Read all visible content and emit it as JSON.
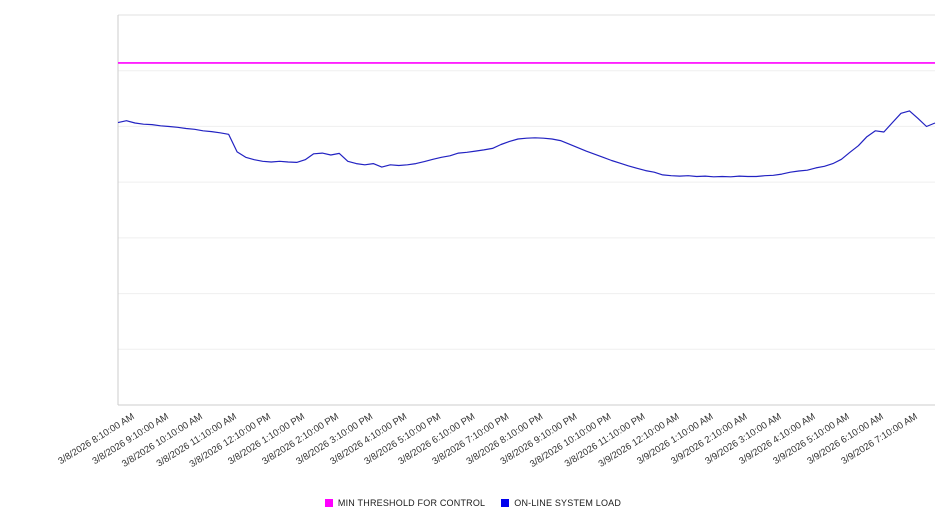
{
  "legend": {
    "items": [
      {
        "label": "MIN THRESHOLD FOR CONTROL",
        "color": "#ff00ff"
      },
      {
        "label": "ON-LINE SYSTEM LOAD",
        "color": "#0000ee"
      }
    ]
  },
  "chart_data": {
    "type": "line",
    "title": "",
    "xlabel": "",
    "ylabel": "",
    "y_ticks_shown": false,
    "ylim": [
      0,
      100
    ],
    "grid": "horizontal",
    "legend_position": "bottom",
    "x": [
      "3/8/2026 8:10:00 AM",
      "3/8/2026 9:10:00 AM",
      "3/8/2026 10:10:00 AM",
      "3/8/2026 11:10:00 AM",
      "3/8/2026 12:10:00 PM",
      "3/8/2026 1:10:00 PM",
      "3/8/2026 2:10:00 PM",
      "3/8/2026 3:10:00 PM",
      "3/8/2026 4:10:00 PM",
      "3/8/2026 5:10:00 PM",
      "3/8/2026 6:10:00 PM",
      "3/8/2026 7:10:00 PM",
      "3/8/2026 8:10:00 PM",
      "3/8/2026 9:10:00 PM",
      "3/8/2026 10:10:00 PM",
      "3/8/2026 11:10:00 PM",
      "3/9/2026 12:10:00 AM",
      "3/9/2026 1:10:00 AM",
      "3/9/2026 2:10:00 AM",
      "3/9/2026 3:10:00 AM",
      "3/9/2026 4:10:00 AM",
      "3/9/2026 5:10:00 AM",
      "3/9/2026 6:10:00 AM",
      "3/9/2026 7:10:00 AM"
    ],
    "sample_interval_minutes": 15,
    "series": [
      {
        "name": "MIN THRESHOLD FOR CONTROL",
        "color": "#ff00ff",
        "constant_value": 87.7
      },
      {
        "name": "ON-LINE SYSTEM LOAD",
        "color": "#2222c2",
        "values": [
          72.4,
          72.9,
          72.3,
          72.0,
          71.9,
          71.6,
          71.4,
          71.2,
          70.9,
          70.7,
          70.3,
          70.1,
          69.8,
          69.4,
          64.9,
          63.5,
          62.9,
          62.5,
          62.3,
          62.5,
          62.3,
          62.2,
          62.9,
          64.4,
          64.6,
          64.1,
          64.5,
          62.5,
          61.9,
          61.6,
          61.9,
          61.0,
          61.6,
          61.4,
          61.6,
          61.9,
          62.4,
          63.0,
          63.5,
          63.9,
          64.6,
          64.8,
          65.1,
          65.4,
          65.8,
          66.8,
          67.6,
          68.2,
          68.4,
          68.5,
          68.4,
          68.2,
          67.8,
          66.9,
          66.0,
          65.1,
          64.3,
          63.5,
          62.7,
          62.0,
          61.3,
          60.7,
          60.1,
          59.7,
          59.0,
          58.8,
          58.7,
          58.8,
          58.6,
          58.7,
          58.5,
          58.6,
          58.5,
          58.7,
          58.6,
          58.6,
          58.8,
          58.9,
          59.2,
          59.7,
          60.0,
          60.2,
          60.8,
          61.2,
          61.9,
          63.0,
          64.8,
          66.5,
          68.8,
          70.3,
          70.0,
          72.4,
          74.8,
          75.4,
          73.5,
          71.4,
          72.3
        ]
      }
    ]
  }
}
